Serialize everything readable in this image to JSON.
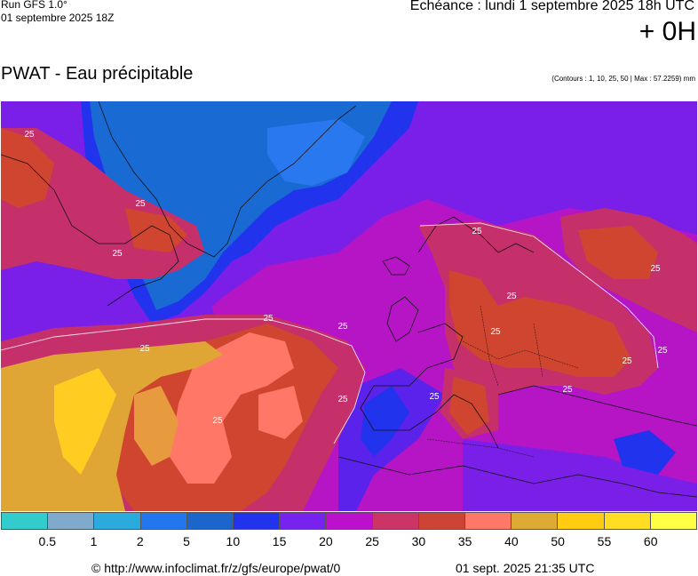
{
  "header": {
    "run_label": "Run GFS 1.0°",
    "run_date": "01 septembre 2025 18Z",
    "valid_time": "Echéance : lundi 1 septembre 2025 18h UTC",
    "lead_time": "+ 0H",
    "product_title": "PWAT - Eau précipitable",
    "contours_note": "(Contours : 1, 10, 25, 50 | Max : 57.2259) mm"
  },
  "map": {
    "contour_label": "25",
    "contour_label_count": 16
  },
  "legend": {
    "colors": [
      "#33cccc",
      "#80aacc",
      "#2aaadd",
      "#2277ee",
      "#1a66cc",
      "#2233ee",
      "#7722ee",
      "#bb11cc",
      "#cc3366",
      "#cc4433",
      "#ff7766",
      "#ddaa33",
      "#ffcc11",
      "#ffdd22",
      "#ffff44"
    ],
    "ticks": [
      "0.5",
      "1",
      "2",
      "5",
      "10",
      "15",
      "20",
      "25",
      "30",
      "35",
      "40",
      "50",
      "55",
      "60"
    ]
  },
  "footer": {
    "url": "© http://www.infoclimat.fr/z/gfs/europe/pwat/0",
    "timestamp": "01 sept. 2025 21:35 UTC"
  }
}
